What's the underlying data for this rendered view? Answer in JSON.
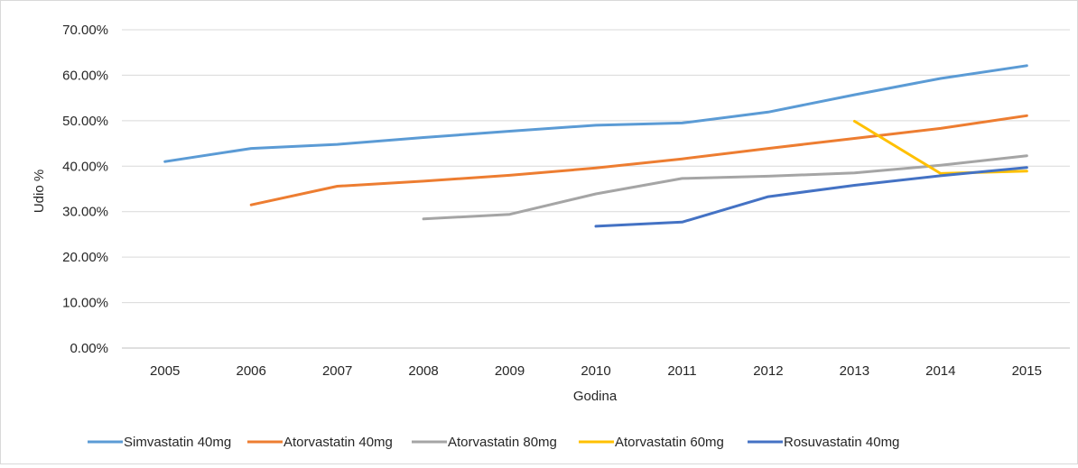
{
  "chart_data": {
    "type": "line",
    "title": "",
    "xlabel": "Godina",
    "ylabel": "Udio %",
    "x": [
      "2005",
      "2006",
      "2007",
      "2008",
      "2009",
      "2010",
      "2011",
      "2012",
      "2013",
      "2014",
      "2015"
    ],
    "yticks": [
      "0.00%",
      "10.00%",
      "20.00%",
      "30.00%",
      "40.00%",
      "50.00%",
      "60.00%",
      "70.00%"
    ],
    "ylim": [
      0,
      70
    ],
    "grid": true,
    "legend_position": "bottom",
    "series": [
      {
        "name": "Simvastatin 40mg",
        "color": "#5b9bd5",
        "values": [
          41.0,
          43.9,
          44.8,
          46.3,
          47.7,
          49.0,
          49.5,
          51.9,
          55.7,
          59.3,
          62.1
        ]
      },
      {
        "name": "Atorvastatin 40mg",
        "color": "#ed7d31",
        "values": [
          null,
          31.5,
          35.6,
          36.7,
          38.0,
          39.6,
          41.6,
          43.9,
          46.1,
          48.3,
          51.1
        ]
      },
      {
        "name": "Atorvastatin 80mg",
        "color": "#a5a5a5",
        "values": [
          null,
          null,
          null,
          28.4,
          29.4,
          33.9,
          37.3,
          37.8,
          38.5,
          40.2,
          42.3
        ]
      },
      {
        "name": "Atorvastatin 60mg",
        "color": "#ffc000",
        "values": [
          null,
          null,
          null,
          null,
          null,
          null,
          null,
          null,
          49.9,
          38.4,
          38.9
        ]
      },
      {
        "name": "Rosuvastatin 40mg",
        "color": "#4472c4",
        "values": [
          null,
          null,
          null,
          null,
          null,
          26.8,
          27.7,
          33.3,
          35.8,
          37.9,
          39.7
        ]
      }
    ]
  }
}
